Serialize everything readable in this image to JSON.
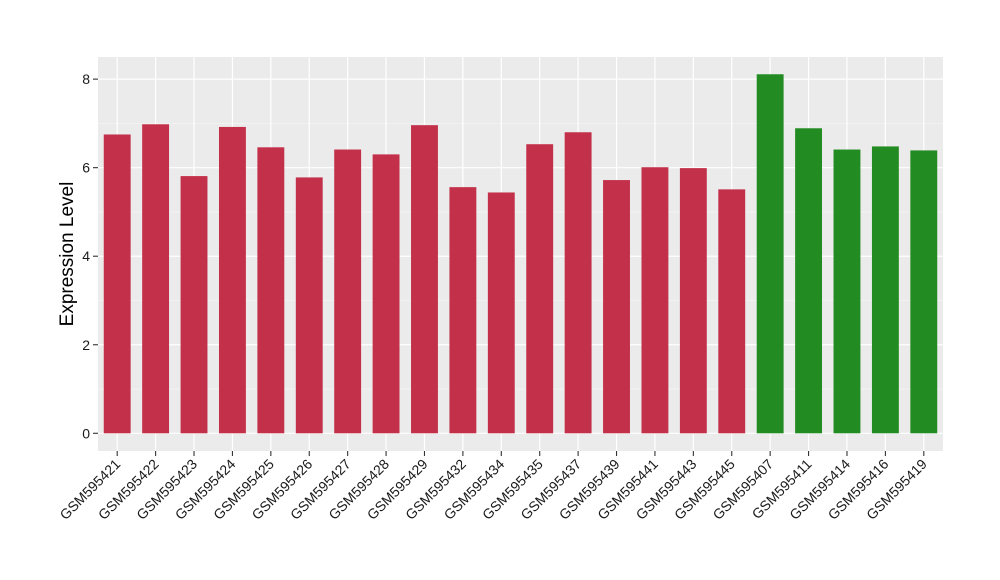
{
  "chart_data": {
    "type": "bar",
    "title": "",
    "xlabel": "",
    "ylabel": "Expression Level",
    "ylim": [
      -0.4,
      8.5
    ],
    "yticks": [
      0,
      2,
      4,
      6,
      8
    ],
    "grid": true,
    "panel_background": "#ebebeb",
    "categories": [
      "GSM595421",
      "GSM595422",
      "GSM595423",
      "GSM595424",
      "GSM595425",
      "GSM595426",
      "GSM595427",
      "GSM595428",
      "GSM595429",
      "GSM595432",
      "GSM595434",
      "GSM595435",
      "GSM595437",
      "GSM595439",
      "GSM595441",
      "GSM595443",
      "GSM595445",
      "GSM595407",
      "GSM595411",
      "GSM595414",
      "GSM595416",
      "GSM595419"
    ],
    "values": [
      6.75,
      6.98,
      5.81,
      6.92,
      6.46,
      5.78,
      6.41,
      6.3,
      6.96,
      5.56,
      5.44,
      6.53,
      6.8,
      5.72,
      6.01,
      5.99,
      5.51,
      8.11,
      6.89,
      6.41,
      6.48,
      6.39
    ],
    "groups": [
      "a",
      "a",
      "a",
      "a",
      "a",
      "a",
      "a",
      "a",
      "a",
      "a",
      "a",
      "a",
      "a",
      "a",
      "a",
      "a",
      "a",
      "b",
      "b",
      "b",
      "b",
      "b"
    ],
    "group_colors": {
      "a": "#c3304a",
      "b": "#228b22"
    }
  }
}
